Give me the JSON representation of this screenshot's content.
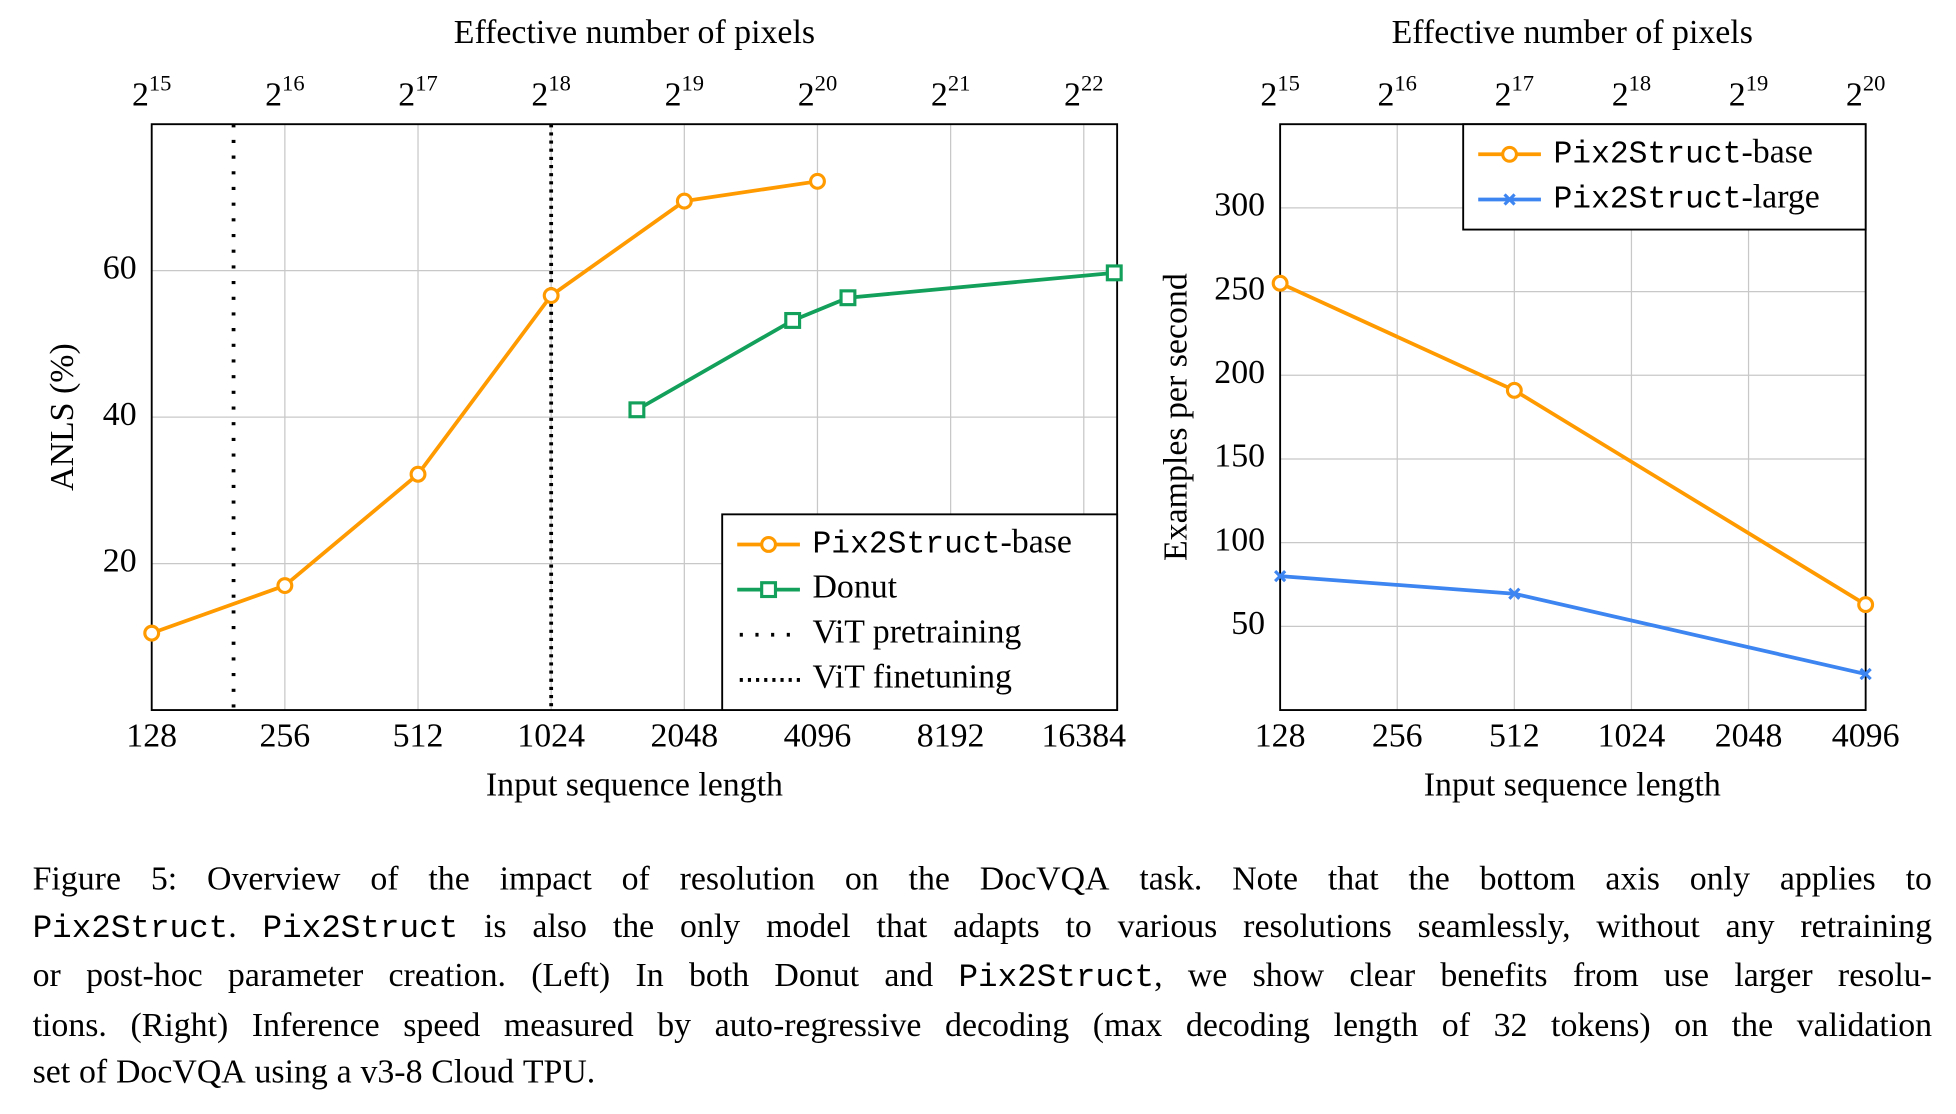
{
  "colors": {
    "pix2struct_base": "#FF9A00",
    "donut": "#12A05A",
    "pix2struct_large": "#3D85F0",
    "grid": "#C8C8C8"
  },
  "chart_data": [
    {
      "type": "line",
      "xlabel": "Input sequence length",
      "ylabel": "ANLS (%)",
      "top_axis_label": "Effective number of pixels",
      "x_scale": "log2",
      "xlim": [
        128,
        18000
      ],
      "ylim": [
        0,
        80
      ],
      "x_ticks": [
        128,
        256,
        512,
        1024,
        2048,
        4096,
        8192,
        16384
      ],
      "x_tick_labels": [
        "128",
        "256",
        "512",
        "1024",
        "2048",
        "4096",
        "8192",
        "16384"
      ],
      "top_ticks": [
        "15",
        "16",
        "17",
        "18",
        "19",
        "20",
        "21",
        "22"
      ],
      "y_ticks": [
        20,
        40,
        60
      ],
      "y_tick_labels": [
        "20",
        "40",
        "60"
      ],
      "grid": true,
      "legend_placement": "bottom-right",
      "series": [
        {
          "name_mono": "Pix2Struct",
          "name_rest": "-base",
          "color_key": "pix2struct_base",
          "marker": "circle",
          "x": [
            128,
            256,
            512,
            1024,
            2048,
            4096
          ],
          "y": [
            10.5,
            17,
            32.2,
            56.6,
            69.5,
            72.2
          ]
        },
        {
          "name_mono": "",
          "name_rest": "Donut",
          "color_key": "donut",
          "marker": "square",
          "x": [
            1600,
            3600,
            4800,
            19200
          ],
          "y": [
            41,
            53.2,
            56.3,
            59.7
          ]
        }
      ],
      "vlines": [
        {
          "name": "ViT pretraining",
          "x": 196,
          "style": "sparse-dotted"
        },
        {
          "name": "ViT finetuning",
          "x": 1024,
          "style": "dense-dotted"
        }
      ]
    },
    {
      "type": "line",
      "xlabel": "Input sequence length",
      "ylabel": "Examples per second",
      "top_axis_label": "Effective number of pixels",
      "x_scale": "log2",
      "xlim": [
        128,
        4096
      ],
      "ylim": [
        0,
        350
      ],
      "x_ticks": [
        128,
        256,
        512,
        1024,
        2048,
        4096
      ],
      "x_tick_labels": [
        "128",
        "256",
        "512",
        "1024",
        "2048",
        "4096"
      ],
      "top_ticks": [
        "15",
        "16",
        "17",
        "18",
        "19",
        "20"
      ],
      "y_ticks": [
        50,
        100,
        150,
        200,
        250,
        300
      ],
      "y_tick_labels": [
        "50",
        "100",
        "150",
        "200",
        "250",
        "300"
      ],
      "grid": true,
      "legend_placement": "top-right",
      "series": [
        {
          "name_mono": "Pix2Struct",
          "name_rest": "-base",
          "color_key": "pix2struct_base",
          "marker": "circle",
          "x": [
            128,
            512,
            4096
          ],
          "y": [
            255,
            191,
            63
          ]
        },
        {
          "name_mono": "Pix2Struct",
          "name_rest": "-large",
          "color_key": "pix2struct_large",
          "marker": "x",
          "x": [
            128,
            512,
            4096
          ],
          "y": [
            80,
            69.5,
            21.5
          ]
        }
      ]
    }
  ],
  "caption": {
    "lines": [
      [
        {
          "t": "Figure"
        },
        {
          "t": "5:"
        },
        {
          "t": "Overview"
        },
        {
          "t": "of"
        },
        {
          "t": "the"
        },
        {
          "t": "impact"
        },
        {
          "t": "of"
        },
        {
          "t": "resolution"
        },
        {
          "t": "on"
        },
        {
          "t": "the"
        },
        {
          "t": "DocVQA"
        },
        {
          "t": "task."
        },
        {
          "t": "Note"
        },
        {
          "t": "that"
        },
        {
          "t": "the"
        },
        {
          "t": "bottom"
        },
        {
          "t": "axis"
        },
        {
          "t": "only"
        },
        {
          "t": "applies"
        },
        {
          "t": "to"
        }
      ],
      [
        {
          "t": "Pix2Struct",
          "m": true
        },
        {
          "t": "."
        },
        {
          "t": "Pix2Struct",
          "m": true
        },
        {
          "t": "is also the only model that adapts to various resolutions seamlessly, without any retraining"
        }
      ],
      [
        {
          "t": "or post-hoc parameter creation. (Left) In both Donut and"
        },
        {
          "t": "Pix2Struct",
          "m": true
        },
        {
          "t": ", we show clear benefits from use larger resolu-"
        }
      ],
      [
        {
          "t": "tions. (Right) Inference speed measured by auto-regressive decoding (max decoding length of 32 tokens) on the validation"
        }
      ],
      [
        {
          "t": "set of DocVQA using a v3-8 Cloud TPU."
        }
      ]
    ]
  }
}
